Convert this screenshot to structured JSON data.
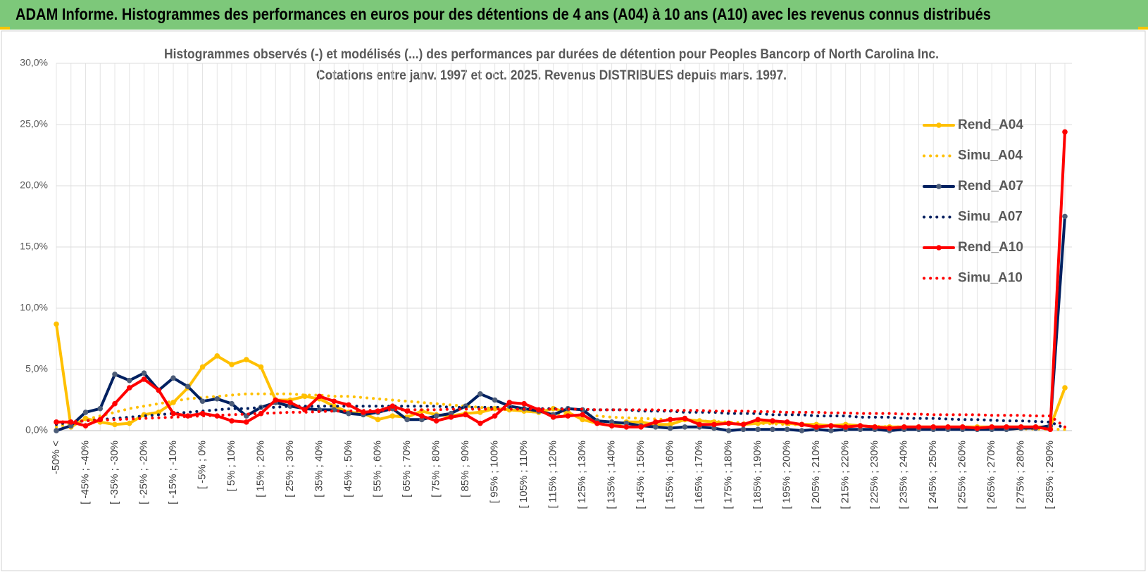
{
  "header": {
    "title": "ADAM Informe. Histogrammes des performances en euros pour des détentions de 4 ans (A04) à 10 ans (A10) avec les revenus connus distribués"
  },
  "chart_data": {
    "type": "line",
    "title": "Histogrammes observés (-) et modélisés (...) des performances par durées de détention pour Peoples Bancorp of North Carolina Inc.",
    "subtitle": "Cotations entre janv. 1997 et oct. 2025.  Revenus DISTRIBUES depuis mars. 1997.",
    "categories": [
      "-50% <",
      null,
      "[ -45% ; -40%",
      null,
      "[ -35% ; -30%",
      null,
      "[ -25% ; -20%",
      null,
      "[ -15% ; -10%",
      null,
      "[ -5% ; 0%",
      null,
      "[ 5% ; 10%",
      null,
      "[ 15% ; 20%",
      null,
      "[ 25% ; 30%",
      null,
      "[ 35% ; 40%",
      null,
      "[ 45% ; 50%",
      null,
      "[ 55% ; 60%",
      null,
      "[ 65% ; 70%",
      null,
      "[ 75% ; 80%",
      null,
      "[ 85% ; 90%",
      null,
      "[ 95% ; 100%",
      null,
      "[ 105% ; 110%",
      null,
      "[ 115% ; 120%",
      null,
      "[ 125% ; 130%",
      null,
      "[ 135% ; 140%",
      null,
      "[ 145% ; 150%",
      null,
      "[ 155% ; 160%",
      null,
      "[ 165% ; 170%",
      null,
      "[ 175% ; 180%",
      null,
      "[ 185% ; 190%",
      null,
      "[ 195% ; 200%",
      null,
      "[ 205% ; 210%",
      null,
      "[ 215% ; 220%",
      null,
      "[ 225% ; 230%",
      null,
      "[ 235% ; 240%",
      null,
      "[ 245% ; 250%",
      null,
      "[ 255% ; 260%",
      null,
      "[ 265% ; 270%",
      null,
      "[ 275% ; 280%",
      null,
      "[ 285% ; 290%",
      null
    ],
    "series": [
      {
        "name": "Rend_A04",
        "color": "#FFC000",
        "line_style": "solid",
        "markers": true,
        "values": [
          8.7,
          0.3,
          1.0,
          0.7,
          0.5,
          0.6,
          1.3,
          1.5,
          2.3,
          3.5,
          5.2,
          6.1,
          5.4,
          5.8,
          5.2,
          2.5,
          2.5,
          2.8,
          2.6,
          2.0,
          1.5,
          1.4,
          0.9,
          1.2,
          1.1,
          1.6,
          1.3,
          1.2,
          1.4,
          1.5,
          1.8,
          1.7,
          1.6,
          1.5,
          1.8,
          1.5,
          0.9,
          0.6,
          0.4,
          0.7,
          0.7,
          0.5,
          0.5,
          0.9,
          0.8,
          0.7,
          0.6,
          0.5,
          0.6,
          0.7,
          0.6,
          0.5,
          0.5,
          0.4,
          0.5,
          0.4,
          0.3,
          0.3,
          0.3,
          0.3,
          0.3,
          0.3,
          0.3,
          0.3,
          0.3,
          0.3,
          0.3,
          0.3,
          0.3,
          3.5
        ]
      },
      {
        "name": "Simu_A04",
        "color": "#FFC000",
        "line_style": "dotted",
        "markers": false,
        "values": [
          0.3,
          0.6,
          0.9,
          1.2,
          1.5,
          1.8,
          2.0,
          2.2,
          2.4,
          2.6,
          2.7,
          2.8,
          2.9,
          3.0,
          3.0,
          3.0,
          3.0,
          2.9,
          2.9,
          2.8,
          2.8,
          2.7,
          2.6,
          2.5,
          2.4,
          2.3,
          2.2,
          2.1,
          2.0,
          1.9,
          1.8,
          1.7,
          1.6,
          1.5,
          1.4,
          1.3,
          1.25,
          1.2,
          1.1,
          1.05,
          1.0,
          0.95,
          0.9,
          0.85,
          0.8,
          0.75,
          0.7,
          0.65,
          0.6,
          0.55,
          0.5,
          0.48,
          0.45,
          0.42,
          0.4,
          0.37,
          0.35,
          0.32,
          0.3,
          0.28,
          0.26,
          0.24,
          0.22,
          0.2,
          0.18,
          0.16,
          0.15,
          0.14,
          0.12,
          0.1
        ]
      },
      {
        "name": "Rend_A07",
        "color": "#002060",
        "marker_color": "#4d5d78",
        "line_style": "solid",
        "markers": true,
        "values": [
          0.0,
          0.4,
          1.5,
          1.8,
          4.6,
          4.1,
          4.7,
          3.3,
          4.3,
          3.6,
          2.4,
          2.6,
          2.2,
          1.2,
          1.9,
          2.3,
          2.0,
          1.8,
          1.7,
          1.7,
          1.4,
          1.3,
          1.5,
          1.8,
          0.9,
          0.9,
          1.2,
          1.4,
          2.0,
          3.0,
          2.5,
          2.0,
          1.8,
          1.6,
          1.3,
          1.8,
          1.7,
          0.8,
          0.7,
          0.6,
          0.4,
          0.3,
          0.2,
          0.3,
          0.3,
          0.2,
          0.0,
          0.1,
          0.1,
          0.1,
          0.1,
          0.0,
          0.1,
          0.0,
          0.1,
          0.1,
          0.1,
          0.0,
          0.1,
          0.1,
          0.1,
          0.1,
          0.1,
          0.1,
          0.1,
          0.1,
          0.2,
          0.2,
          0.4,
          17.5
        ]
      },
      {
        "name": "Simu_A07",
        "color": "#002060",
        "line_style": "dotted",
        "markers": false,
        "values": [
          0.5,
          0.7,
          0.8,
          0.9,
          1.0,
          1.1,
          1.2,
          1.3,
          1.4,
          1.5,
          1.6,
          1.7,
          1.8,
          1.8,
          1.9,
          1.9,
          2.0,
          2.0,
          2.0,
          2.0,
          2.0,
          2.0,
          2.0,
          2.0,
          2.0,
          2.0,
          2.0,
          1.9,
          1.9,
          1.9,
          1.9,
          1.9,
          1.8,
          1.8,
          1.8,
          1.8,
          1.7,
          1.7,
          1.7,
          1.7,
          1.6,
          1.6,
          1.6,
          1.5,
          1.5,
          1.5,
          1.4,
          1.4,
          1.4,
          1.3,
          1.3,
          1.3,
          1.2,
          1.2,
          1.2,
          1.1,
          1.1,
          1.1,
          1.0,
          1.0,
          1.0,
          0.95,
          0.9,
          0.9,
          0.85,
          0.8,
          0.8,
          0.75,
          0.7,
          0.2
        ]
      },
      {
        "name": "Rend_A10",
        "color": "#FF0000",
        "line_style": "solid",
        "markers": true,
        "values": [
          0.7,
          0.7,
          0.4,
          0.9,
          2.2,
          3.5,
          4.2,
          3.3,
          1.4,
          1.2,
          1.4,
          1.2,
          0.8,
          0.7,
          1.4,
          2.5,
          2.3,
          1.7,
          2.8,
          2.4,
          2.1,
          1.5,
          1.6,
          2.0,
          1.6,
          1.2,
          0.8,
          1.1,
          1.3,
          0.6,
          1.2,
          2.3,
          2.2,
          1.7,
          1.1,
          1.2,
          1.3,
          0.6,
          0.4,
          0.3,
          0.3,
          0.7,
          0.9,
          1.0,
          0.5,
          0.5,
          0.6,
          0.5,
          0.9,
          0.8,
          0.7,
          0.5,
          0.3,
          0.4,
          0.3,
          0.4,
          0.3,
          0.2,
          0.3,
          0.3,
          0.3,
          0.3,
          0.3,
          0.2,
          0.3,
          0.3,
          0.3,
          0.3,
          0.1,
          24.4
        ]
      },
      {
        "name": "Simu_A10",
        "color": "#FF0000",
        "line_style": "dotted",
        "markers": false,
        "values": [
          0.7,
          0.75,
          0.8,
          0.85,
          0.9,
          0.95,
          1.0,
          1.05,
          1.1,
          1.15,
          1.2,
          1.25,
          1.3,
          1.35,
          1.4,
          1.45,
          1.5,
          1.5,
          1.55,
          1.6,
          1.6,
          1.65,
          1.65,
          1.7,
          1.7,
          1.7,
          1.7,
          1.75,
          1.75,
          1.75,
          1.75,
          1.75,
          1.75,
          1.75,
          1.75,
          1.75,
          1.75,
          1.7,
          1.7,
          1.7,
          1.7,
          1.7,
          1.65,
          1.65,
          1.65,
          1.6,
          1.6,
          1.6,
          1.55,
          1.55,
          1.5,
          1.5,
          1.5,
          1.45,
          1.45,
          1.4,
          1.4,
          1.4,
          1.35,
          1.35,
          1.3,
          1.3,
          1.3,
          1.3,
          1.25,
          1.25,
          1.25,
          1.2,
          1.2,
          0.3
        ]
      }
    ],
    "ylim": [
      0,
      30
    ],
    "yticks": [
      {
        "value": 0,
        "label": "0,0%"
      },
      {
        "value": 5,
        "label": "5,0%"
      },
      {
        "value": 10,
        "label": "10,0%"
      },
      {
        "value": 15,
        "label": "15,0%"
      },
      {
        "value": 20,
        "label": "20,0%"
      },
      {
        "value": 25,
        "label": "25,0%"
      },
      {
        "value": 30,
        "label": "30,0%"
      }
    ],
    "grid": true,
    "legend": "upper right"
  }
}
